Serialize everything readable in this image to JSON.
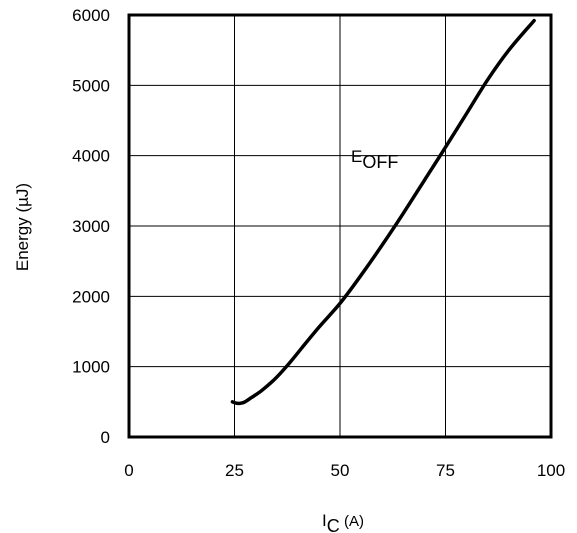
{
  "chart_data": {
    "type": "line",
    "title": "",
    "xlabel": {
      "main": "I",
      "sub": "C",
      "unit": " (A)"
    },
    "ylabel": "Energy (µJ)",
    "xlim": [
      0,
      100
    ],
    "ylim": [
      0,
      6000
    ],
    "xticks": [
      0,
      25,
      50,
      75,
      100
    ],
    "yticks": [
      0,
      1000,
      2000,
      3000,
      4000,
      5000,
      6000
    ],
    "xtick_labels": [
      "0",
      "25",
      "50",
      "75",
      "100"
    ],
    "ytick_labels": [
      "0",
      "1000",
      "2000",
      "3000",
      "4000",
      "5000",
      "6000"
    ],
    "grid": true,
    "series": [
      {
        "name": "EOFF",
        "label": {
          "main": "E",
          "sub": "OFF"
        },
        "x": [
          24.5,
          25.5,
          26.5,
          27.5,
          29,
          31,
          33,
          35,
          38,
          41,
          45,
          50,
          55,
          60,
          65,
          70,
          75,
          80,
          85,
          90,
          96
        ],
        "y": [
          500,
          480,
          480,
          500,
          560,
          640,
          740,
          850,
          1050,
          1270,
          1560,
          1900,
          2300,
          2730,
          3180,
          3650,
          4120,
          4600,
          5080,
          5500,
          5920
        ],
        "color": "#000000"
      }
    ]
  }
}
